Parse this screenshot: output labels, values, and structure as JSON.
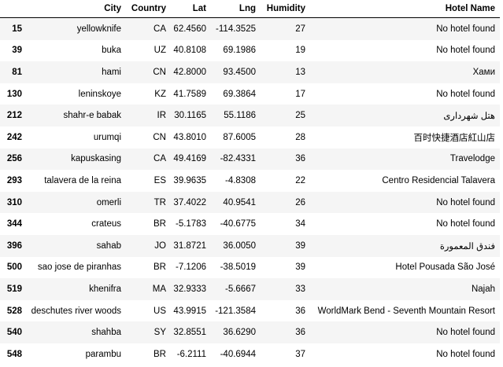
{
  "table": {
    "columns": [
      "City",
      "Country",
      "Lat",
      "Lng",
      "Humidity",
      "Hotel Name"
    ],
    "rows": [
      [
        "15",
        "yellowknife",
        "CA",
        "62.4560",
        "-114.3525",
        "27",
        "No hotel found"
      ],
      [
        "39",
        "buka",
        "UZ",
        "40.8108",
        "69.1986",
        "19",
        "No hotel found"
      ],
      [
        "81",
        "hami",
        "CN",
        "42.8000",
        "93.4500",
        "13",
        "Хами"
      ],
      [
        "130",
        "leninskoye",
        "KZ",
        "41.7589",
        "69.3864",
        "17",
        "No hotel found"
      ],
      [
        "212",
        "shahr-e babak",
        "IR",
        "30.1165",
        "55.1186",
        "25",
        "هتل شهرداری"
      ],
      [
        "242",
        "urumqi",
        "CN",
        "43.8010",
        "87.6005",
        "28",
        "百时快捷酒店紅山店"
      ],
      [
        "256",
        "kapuskasing",
        "CA",
        "49.4169",
        "-82.4331",
        "36",
        "Travelodge"
      ],
      [
        "293",
        "talavera de la reina",
        "ES",
        "39.9635",
        "-4.8308",
        "22",
        "Centro Residencial Talavera"
      ],
      [
        "310",
        "omerli",
        "TR",
        "37.4022",
        "40.9541",
        "26",
        "No hotel found"
      ],
      [
        "344",
        "crateus",
        "BR",
        "-5.1783",
        "-40.6775",
        "34",
        "No hotel found"
      ],
      [
        "396",
        "sahab",
        "JO",
        "31.8721",
        "36.0050",
        "39",
        "فندق المعمورة"
      ],
      [
        "500",
        "sao jose de piranhas",
        "BR",
        "-7.1206",
        "-38.5019",
        "39",
        "Hotel Pousada São José"
      ],
      [
        "519",
        "khenifra",
        "MA",
        "32.9333",
        "-5.6667",
        "33",
        "Najah"
      ],
      [
        "528",
        "deschutes river woods",
        "US",
        "43.9915",
        "-121.3584",
        "36",
        "WorldMark Bend - Seventh Mountain Resort"
      ],
      [
        "540",
        "shahba",
        "SY",
        "32.8551",
        "36.6290",
        "36",
        "No hotel found"
      ],
      [
        "548",
        "parambu",
        "BR",
        "-6.2111",
        "-40.6944",
        "37",
        "No hotel found"
      ]
    ]
  }
}
